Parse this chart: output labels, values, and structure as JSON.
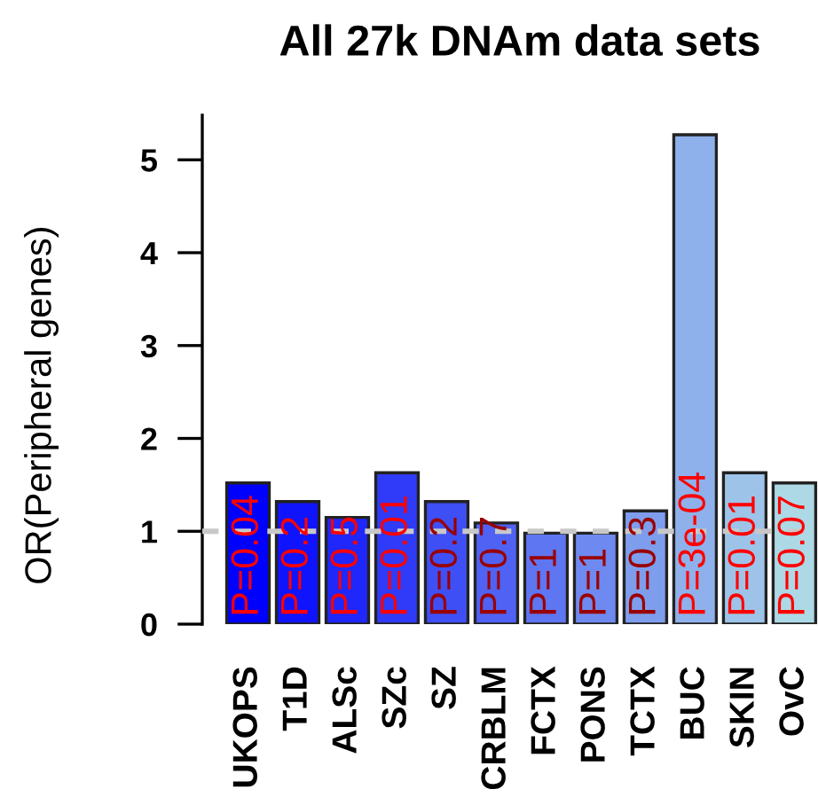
{
  "chart_data": {
    "type": "bar",
    "title": "All 27k DNAm data sets",
    "ylabel": "OR(Peripheral genes)",
    "categories": [
      "UKOPS",
      "T1D",
      "ALSc",
      "SZc",
      "SZ",
      "CRBLM",
      "FCTX",
      "PONS",
      "TCTX",
      "BUC",
      "SKIN",
      "OvC"
    ],
    "values": [
      1.52,
      1.32,
      1.15,
      1.63,
      1.32,
      1.09,
      0.98,
      0.98,
      1.22,
      5.27,
      1.63,
      1.52
    ],
    "colors": [
      "#0000ff",
      "#1014fd",
      "#1f27fa",
      "#2f3bf8",
      "#3f4ff6",
      "#4f62f4",
      "#5e76f1",
      "#6e89ef",
      "#7e9ded",
      "#8eb1eb",
      "#9dc4e8",
      "#add8e6"
    ],
    "annotations": [
      {
        "text": "P=0.04",
        "x": "UKOPS",
        "y": 0
      },
      {
        "text": "P=0.2",
        "x": "T1D",
        "y": 0
      },
      {
        "text": "P=0.5",
        "x": "ALSc",
        "y": 0
      },
      {
        "text": "P=0.01",
        "x": "SZc",
        "y": 0
      },
      {
        "text": "P=0.2",
        "x": "SZ",
        "y": 0
      },
      {
        "text": "P=0.7",
        "x": "CRBLM",
        "y": 0
      },
      {
        "text": "P=1",
        "x": "FCTX",
        "y": 0
      },
      {
        "text": "P=1",
        "x": "PONS",
        "y": 0
      },
      {
        "text": "P=0.3",
        "x": "TCTX",
        "y": 0
      },
      {
        "text": "P=3e-04",
        "x": "BUC",
        "y": 0
      },
      {
        "text": "P=0.01",
        "x": "SKIN",
        "y": 0
      },
      {
        "text": "P=0.07",
        "x": "OvC",
        "y": 0
      }
    ],
    "ylim": [
      0,
      5.48
    ],
    "yticks": [
      0,
      1,
      2,
      3,
      4,
      5
    ],
    "ref_lines": [
      {
        "axis": "y",
        "value": 1,
        "color": "#c8c8c8",
        "line_style": "dashed"
      }
    ]
  }
}
